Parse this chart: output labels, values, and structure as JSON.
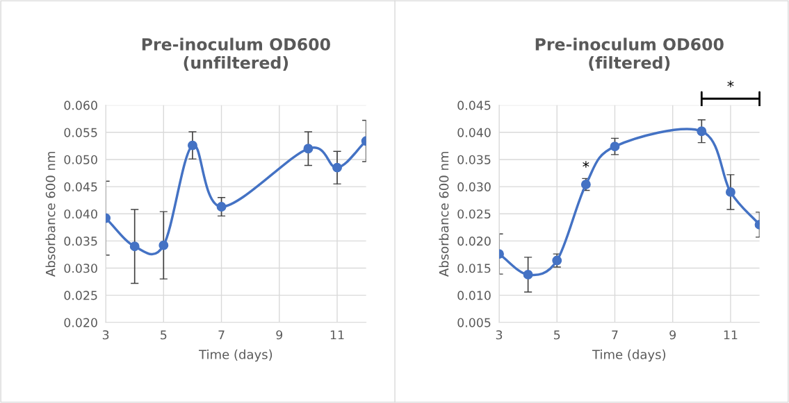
{
  "chart_data": [
    {
      "type": "line",
      "title": "Pre-inoculum OD600\n(unfiltered)",
      "xlabel": "Time (days)",
      "ylabel": "Absorbance 600 nm",
      "x": [
        3,
        4,
        5,
        6,
        7,
        10,
        11,
        12
      ],
      "series": [
        {
          "color": "#4472c4",
          "values": [
            0.0392,
            0.034,
            0.0342,
            0.0526,
            0.0413,
            0.052,
            0.0485,
            0.0534
          ],
          "errors": [
            0.0068,
            0.0068,
            0.0062,
            0.0025,
            0.0017,
            0.0031,
            0.003,
            0.0038
          ]
        }
      ],
      "xlim": [
        3,
        12
      ],
      "xticks": [
        3,
        5,
        7,
        9,
        11
      ],
      "ylim": [
        0.02,
        0.06
      ],
      "yticks": [
        {
          "value": 0.02,
          "label": "0.020"
        },
        {
          "value": 0.025,
          "label": "0.025"
        },
        {
          "value": 0.03,
          "label": "0.030"
        },
        {
          "value": 0.035,
          "label": "0.035"
        },
        {
          "value": 0.04,
          "label": "0.040"
        },
        {
          "value": 0.045,
          "label": "0.045"
        },
        {
          "value": 0.05,
          "label": "0.050"
        },
        {
          "value": 0.055,
          "label": "0.055"
        },
        {
          "value": 0.06,
          "label": "0.060"
        }
      ],
      "grid": true,
      "marker": "circle",
      "line_style": "solid",
      "legend": false
    },
    {
      "type": "line",
      "title": "Pre-inoculum OD600\n(filtered)",
      "xlabel": "Time (days)",
      "ylabel": "Absorbance 600 nm",
      "x": [
        3,
        4,
        5,
        6,
        7,
        10,
        11,
        12
      ],
      "series": [
        {
          "color": "#4472c4",
          "values": [
            0.0176,
            0.0138,
            0.0164,
            0.0304,
            0.0374,
            0.0402,
            0.029,
            0.023
          ],
          "errors": [
            0.0037,
            0.0032,
            0.0012,
            0.0011,
            0.0015,
            0.0021,
            0.0032,
            0.0023
          ]
        }
      ],
      "xlim": [
        3,
        12
      ],
      "xticks": [
        3,
        5,
        7,
        9,
        11
      ],
      "ylim": [
        0.005,
        0.045
      ],
      "yticks": [
        {
          "value": 0.005,
          "label": "0.005"
        },
        {
          "value": 0.01,
          "label": "0.010"
        },
        {
          "value": 0.015,
          "label": "0.015"
        },
        {
          "value": 0.02,
          "label": "0.020"
        },
        {
          "value": 0.025,
          "label": "0.025"
        },
        {
          "value": 0.03,
          "label": "0.030"
        },
        {
          "value": 0.035,
          "label": "0.035"
        },
        {
          "value": 0.04,
          "label": "0.040"
        },
        {
          "value": 0.045,
          "label": "0.045"
        }
      ],
      "annotations": [
        {
          "text": "*",
          "x": 6,
          "y": 0.0304
        },
        "*"
      ],
      "grid": true,
      "marker": "circle",
      "line_style": "solid",
      "legend": false
    }
  ]
}
